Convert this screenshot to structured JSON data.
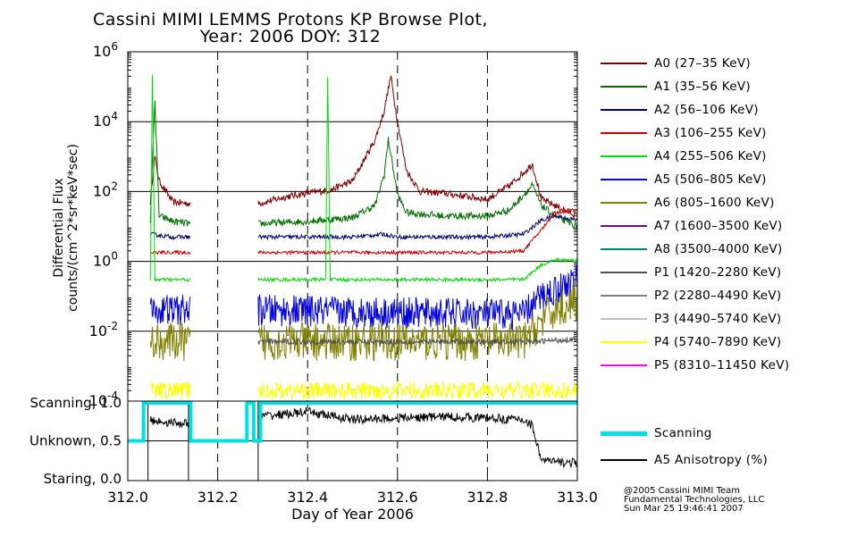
{
  "title_line1": "Cassini MIMI LEMMS Protons KP Browse Plot,",
  "title_line2": "Year: 2006 DOY: 312",
  "credits": [
    "@2005 Cassini MIMI Team",
    "Fundamental Technologies, LLC",
    "Sun Mar 25 19:46:41 2007"
  ],
  "chart_data": [
    {
      "type": "line",
      "title": "Cassini MIMI LEMMS Protons KP Browse Plot, Year: 2006 DOY: 312",
      "ylabel_line1": "Differential Flux",
      "ylabel_line2": "counts/(cm^2*sr*keV*sec)",
      "y_scale": "log",
      "xlim": [
        312.0,
        313.0
      ],
      "ylim": [
        0.0001,
        1000000
      ],
      "y_tick_exponents": [
        -4,
        -2,
        0,
        2,
        4,
        6
      ],
      "y_tick_base": "10",
      "grid": "horizontal solid lines at each decade; vertical dashed lines at 312.2, 312.4, 312.6, 312.8",
      "data_gaps": [
        [
          312.14,
          312.29
        ]
      ],
      "legend_position": "right",
      "series": [
        {
          "name": "A0 (27–35 KeV)",
          "color": "#800000",
          "x": [
            312.05,
            312.06,
            312.07,
            312.1,
            312.14,
            312.29,
            312.35,
            312.4,
            312.45,
            312.5,
            312.55,
            312.57,
            312.585,
            312.6,
            312.62,
            312.65,
            312.7,
            312.8,
            312.85,
            312.9,
            312.92,
            312.95,
            313.0
          ],
          "y": [
            50,
            1000,
            200,
            50,
            45,
            45,
            70,
            90,
            110,
            200,
            3000,
            20000,
            200000,
            10000,
            400,
            100,
            90,
            60,
            150,
            600,
            60,
            40,
            20
          ]
        },
        {
          "name": "A1 (35–56 KeV)",
          "color": "#007000",
          "x": [
            312.05,
            312.06,
            312.07,
            312.1,
            312.14,
            312.29,
            312.4,
            312.5,
            312.55,
            312.57,
            312.58,
            312.6,
            312.62,
            312.7,
            312.8,
            312.85,
            312.9,
            312.92,
            312.95,
            313.0
          ],
          "y": [
            15,
            40000,
            20,
            14,
            12,
            12,
            14,
            18,
            40,
            300,
            3000,
            80,
            25,
            20,
            20,
            30,
            150,
            40,
            20,
            10
          ]
        },
        {
          "name": "A2 (56–106 KeV)",
          "color": "#000070",
          "x": [
            312.05,
            312.1,
            312.14,
            312.29,
            312.4,
            312.5,
            312.57,
            312.6,
            312.7,
            312.8,
            312.88,
            312.92,
            312.95,
            313.0
          ],
          "y": [
            6,
            5,
            5,
            5,
            5,
            5,
            6,
            5,
            5,
            5,
            6,
            15,
            20,
            15
          ]
        },
        {
          "name": "A3 (106–255 KeV)",
          "color": "#d00000",
          "x": [
            312.05,
            312.1,
            312.14,
            312.29,
            312.4,
            312.5,
            312.6,
            312.7,
            312.8,
            312.88,
            312.92,
            312.95,
            313.0
          ],
          "y": [
            1.8,
            1.8,
            1.8,
            1.8,
            1.8,
            1.8,
            1.8,
            1.8,
            1.8,
            2,
            8,
            25,
            30
          ]
        },
        {
          "name": "A4 (255–506 KeV)",
          "color": "#00e000",
          "x": [
            312.05,
            312.055,
            312.06,
            312.1,
            312.14,
            312.29,
            312.44,
            312.445,
            312.45,
            312.6,
            312.8,
            312.88,
            312.92,
            312.95,
            313.0
          ],
          "y": [
            0.3,
            200000,
            0.3,
            0.3,
            0.3,
            0.3,
            0.3,
            200000,
            0.3,
            0.3,
            0.3,
            0.3,
            0.8,
            1.1,
            1.1
          ]
        },
        {
          "name": "A5 (506–805 KeV)",
          "color": "#0000e0",
          "x": [
            312.05,
            312.14,
            312.29,
            312.88,
            312.92,
            312.95,
            313.0
          ],
          "y": [
            0.04,
            0.04,
            0.04,
            0.03,
            0.1,
            0.15,
            0.3
          ]
        },
        {
          "name": "A6 (805–1600 KeV)",
          "color": "#808000",
          "x": [
            312.05,
            312.14,
            312.29,
            312.88,
            312.92,
            312.95,
            313.0
          ],
          "y": [
            0.005,
            0.005,
            0.005,
            0.005,
            0.02,
            0.04,
            0.07
          ]
        },
        {
          "name": "A7 (1600–3500 KeV)",
          "color": "#800080",
          "x": [],
          "y": []
        },
        {
          "name": "A8 (3500–4000 KeV)",
          "color": "#008080",
          "x": [],
          "y": []
        },
        {
          "name": "P1 (1420–2280 KeV)",
          "color": "#505050",
          "x": [
            312.29,
            312.5,
            312.7,
            312.9,
            313.0
          ],
          "y": [
            0.005,
            0.005,
            0.005,
            0.005,
            0.006
          ]
        },
        {
          "name": "P2 (2280–4490 KeV)",
          "color": "#808080",
          "x": [],
          "y": []
        },
        {
          "name": "P3 (4490–5740 KeV)",
          "color": "#c0c0c0",
          "x": [],
          "y": []
        },
        {
          "name": "P4 (5740–7890 KeV)",
          "color": "#ffff00",
          "x": [
            312.05,
            312.14,
            312.29,
            313.0
          ],
          "y": [
            0.0002,
            0.0002,
            0.0002,
            0.0002
          ]
        },
        {
          "name": "P5 (8310–11450 KeV)",
          "color": "#ff00ff",
          "x": [],
          "y": []
        }
      ]
    },
    {
      "type": "line",
      "y_tick_labels": [
        "Scanning, 1.0",
        "Unknown, 0.5",
        "Staring, 0.0"
      ],
      "ylim": [
        0.0,
        1.0
      ],
      "xlim": [
        312.0,
        313.0
      ],
      "xlabel": "Day of Year 2006",
      "x_tick_labels": [
        "312.0",
        "312.2",
        "312.4",
        "312.6",
        "312.8",
        "313.0"
      ],
      "grid": "horizontal line at 0.5; vertical dashed lines at 312.2, 312.4, 312.6, 312.8",
      "series": [
        {
          "name": "Scanning",
          "color": "#00e0e0",
          "x": [
            312.0,
            312.035,
            312.035,
            312.14,
            312.14,
            312.265,
            312.265,
            312.28,
            312.28,
            312.295,
            312.295,
            313.0
          ],
          "y": [
            0.5,
            0.5,
            1.0,
            1.0,
            0.5,
            0.5,
            1.0,
            1.0,
            0.5,
            0.5,
            1.0,
            1.0
          ]
        },
        {
          "name": "A5 Anisotropy (%)",
          "color": "#000000",
          "x": [
            312.05,
            312.1,
            312.14,
            312.29,
            312.4,
            312.5,
            312.6,
            312.7,
            312.8,
            312.88,
            312.9,
            312.92,
            312.95,
            313.0
          ],
          "y": [
            0.77,
            0.74,
            0.72,
            0.82,
            0.88,
            0.78,
            0.8,
            0.82,
            0.8,
            0.78,
            0.7,
            0.25,
            0.22,
            0.21
          ]
        }
      ]
    }
  ]
}
